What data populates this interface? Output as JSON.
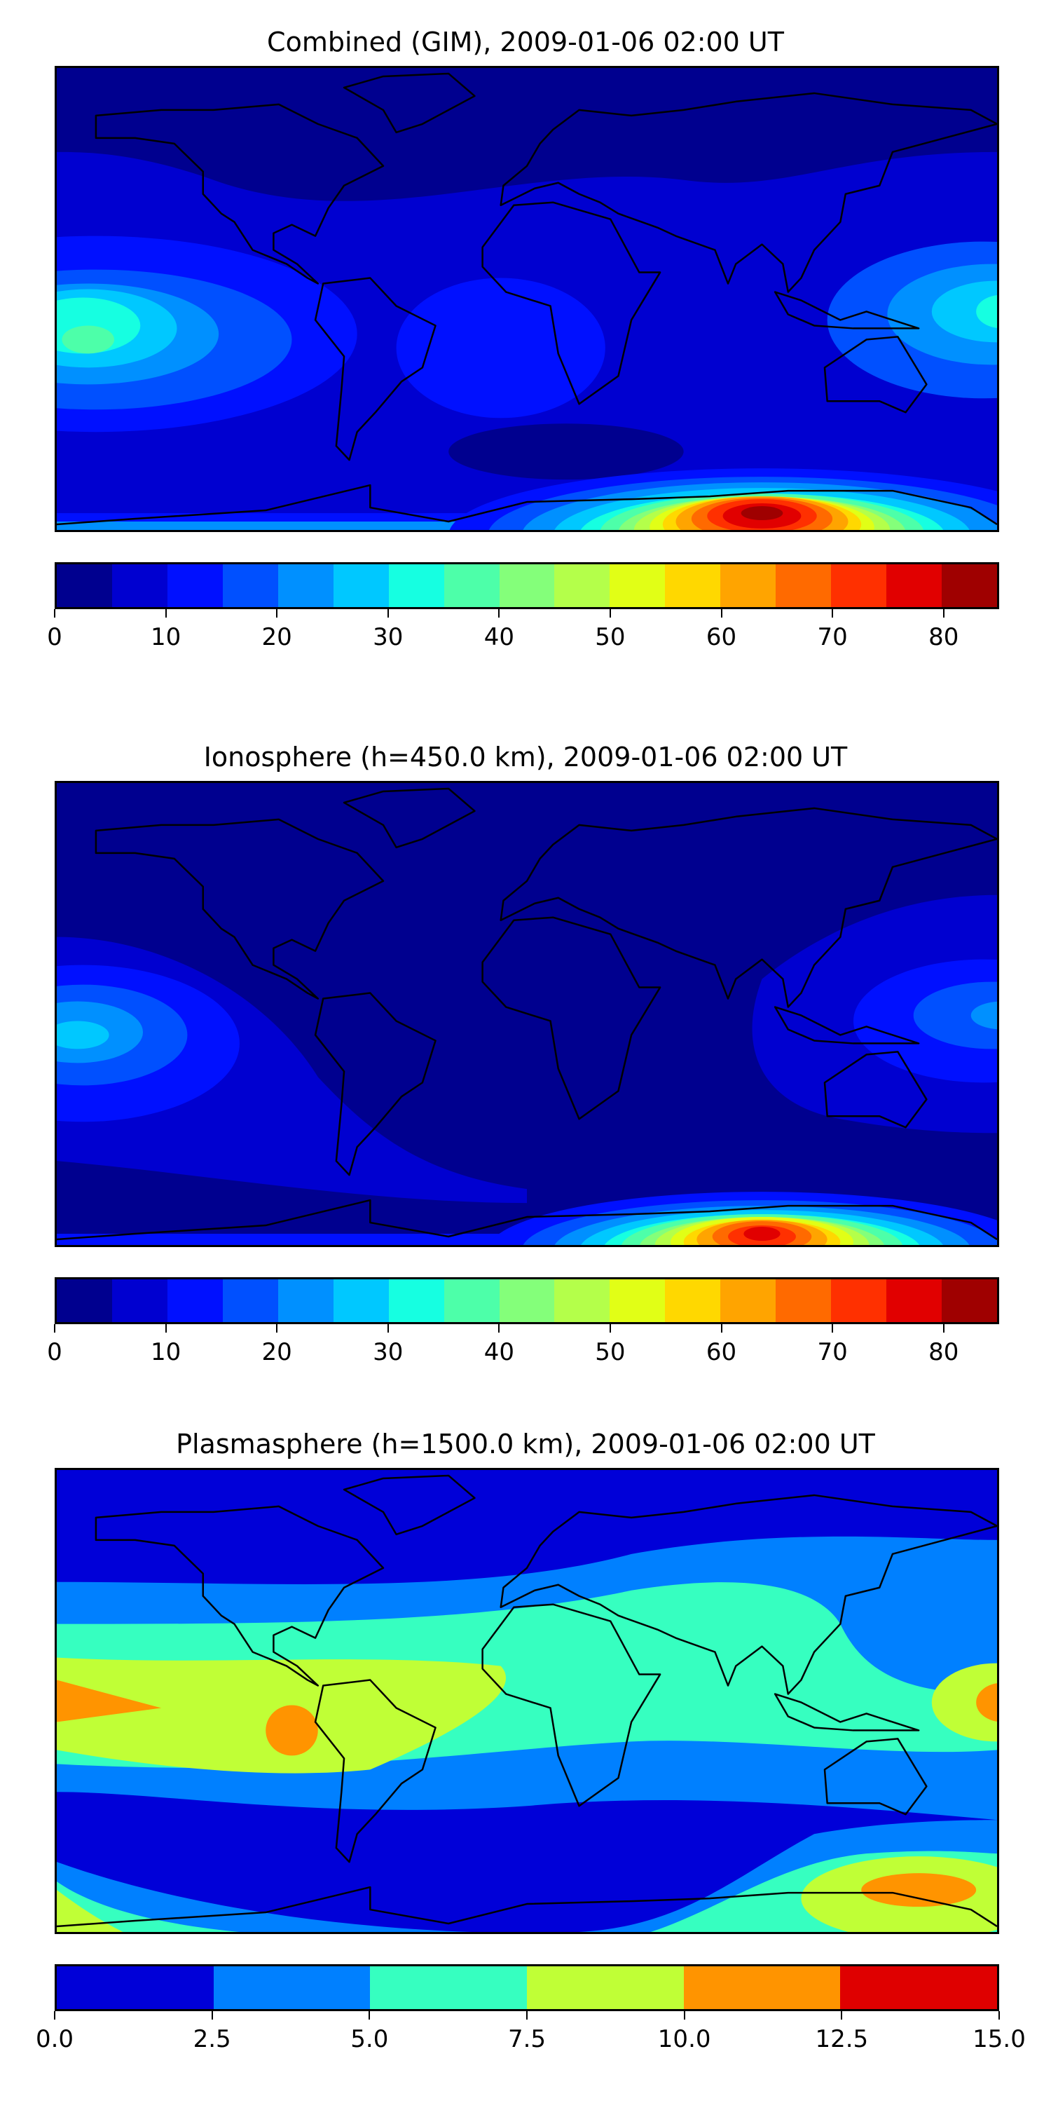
{
  "chart_data": [
    {
      "type": "heatmap",
      "title": "Combined (GIM), 2009-01-06 02:00 UT",
      "colorbar": {
        "levels": [
          0,
          5,
          10,
          15,
          20,
          25,
          30,
          35,
          40,
          45,
          50,
          55,
          60,
          65,
          70,
          75,
          80,
          85
        ],
        "colors": [
          "#00008f",
          "#0000d0",
          "#0010ff",
          "#0050ff",
          "#0090ff",
          "#00c8ff",
          "#16ffe1",
          "#4dffa9",
          "#84ff7a",
          "#b4ff4a",
          "#e1ff16",
          "#ffd800",
          "#ffa400",
          "#ff6a00",
          "#ff3000",
          "#e10000",
          "#9f0000"
        ],
        "ticks": [
          "0",
          "10",
          "20",
          "30",
          "40",
          "50",
          "60",
          "70",
          "80"
        ],
        "tick_values": [
          0,
          10,
          20,
          30,
          40,
          50,
          60,
          70,
          80
        ],
        "range": [
          0,
          85
        ]
      },
      "features": {
        "max_region": "south Indian Ocean / Antarctic coast, value > 80",
        "secondary_max": "central Pacific ~35-40"
      }
    },
    {
      "type": "heatmap",
      "title": "Ionosphere  (h=450.0 km), 2009-01-06 02:00 UT",
      "colorbar": {
        "levels": [
          0,
          5,
          10,
          15,
          20,
          25,
          30,
          35,
          40,
          45,
          50,
          55,
          60,
          65,
          70,
          75,
          80,
          85
        ],
        "colors": [
          "#00008f",
          "#0000d0",
          "#0010ff",
          "#0050ff",
          "#0090ff",
          "#00c8ff",
          "#16ffe1",
          "#4dffa9",
          "#84ff7a",
          "#b4ff4a",
          "#e1ff16",
          "#ffd800",
          "#ffa400",
          "#ff6a00",
          "#ff3000",
          "#e10000",
          "#9f0000"
        ],
        "ticks": [
          "0",
          "10",
          "20",
          "30",
          "40",
          "50",
          "60",
          "70",
          "80"
        ],
        "tick_values": [
          0,
          10,
          20,
          30,
          40,
          50,
          60,
          70,
          80
        ],
        "range": [
          0,
          85
        ]
      }
    },
    {
      "type": "heatmap",
      "title": "Plasmasphere (h=1500.0 km), 2009-01-06 02:00 UT",
      "colorbar": {
        "levels": [
          0,
          2.5,
          5,
          7.5,
          10,
          12.5,
          15
        ],
        "colors": [
          "#0000d8",
          "#0080ff",
          "#36ffc0",
          "#c0ff36",
          "#ff9400",
          "#df0000"
        ],
        "ticks": [
          "0.0",
          "2.5",
          "5.0",
          "7.5",
          "10.0",
          "12.5",
          "15.0"
        ],
        "tick_values": [
          0,
          2.5,
          5,
          7.5,
          10,
          12.5,
          15
        ],
        "range": [
          0,
          15
        ]
      }
    }
  ]
}
